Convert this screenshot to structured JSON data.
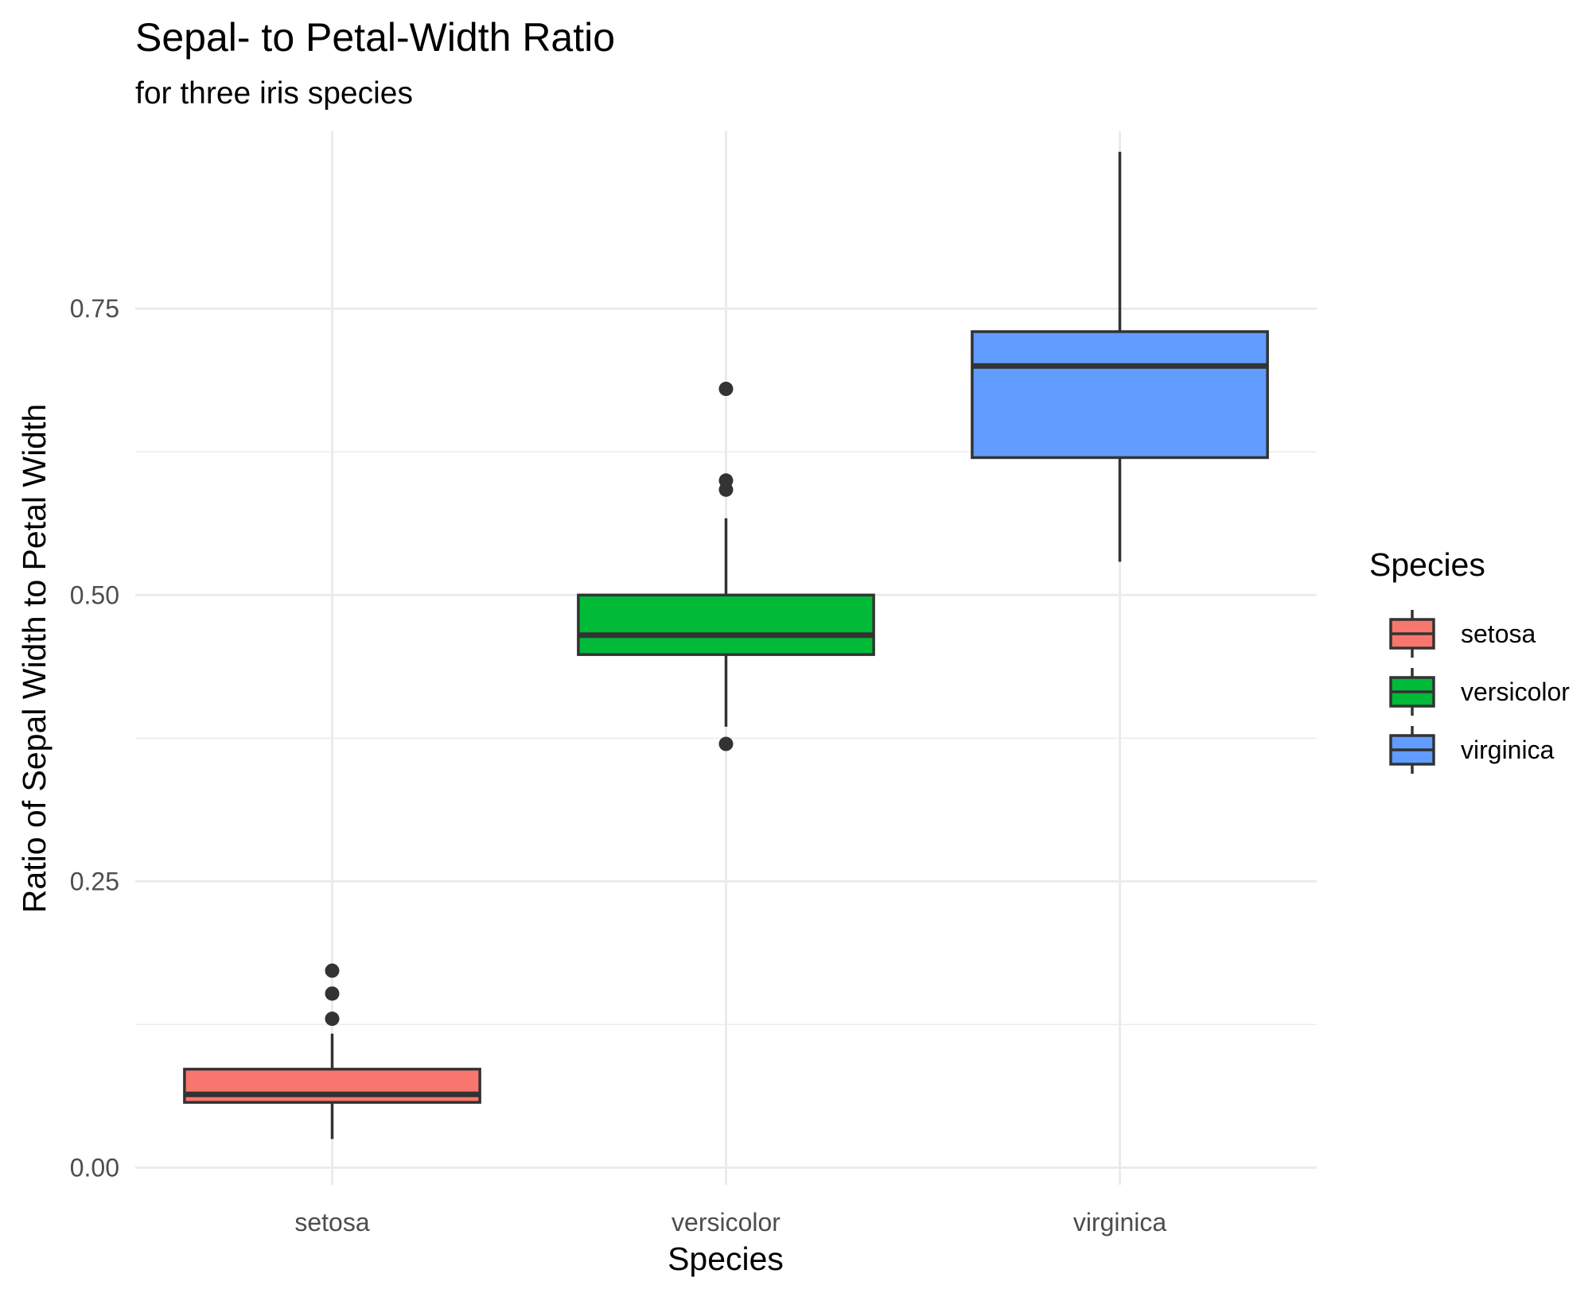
{
  "chart_data": {
    "type": "box",
    "title": "Sepal- to Petal-Width Ratio",
    "subtitle": "for three iris species",
    "xlabel": "Species",
    "ylabel": "Ratio of Sepal Width to Petal Width",
    "ylim": [
      -0.015,
      0.905
    ],
    "y_ticks": [
      0.0,
      0.25,
      0.5,
      0.75
    ],
    "y_tick_labels": [
      "0.00",
      "0.25",
      "0.50",
      "0.75"
    ],
    "categories": [
      "setosa",
      "versicolor",
      "virginica"
    ],
    "grid": true,
    "legend": {
      "title": "Species",
      "position": "right",
      "entries": [
        "setosa",
        "versicolor",
        "virginica"
      ]
    },
    "series": [
      {
        "name": "setosa",
        "color": "#F8766D",
        "whisker_low": 0.025,
        "q1": 0.057,
        "median": 0.064,
        "q3": 0.086,
        "whisker_high": 0.117,
        "outliers": [
          0.13,
          0.152,
          0.172
        ]
      },
      {
        "name": "versicolor",
        "color": "#00BA38",
        "whisker_low": 0.385,
        "q1": 0.448,
        "median": 0.465,
        "q3": 0.5,
        "whisker_high": 0.567,
        "outliers": [
          0.37,
          0.592,
          0.6,
          0.68
        ]
      },
      {
        "name": "virginica",
        "color": "#619CFF",
        "whisker_low": 0.529,
        "q1": 0.62,
        "median": 0.7,
        "q3": 0.73,
        "whisker_high": 0.887,
        "outliers": []
      }
    ]
  }
}
